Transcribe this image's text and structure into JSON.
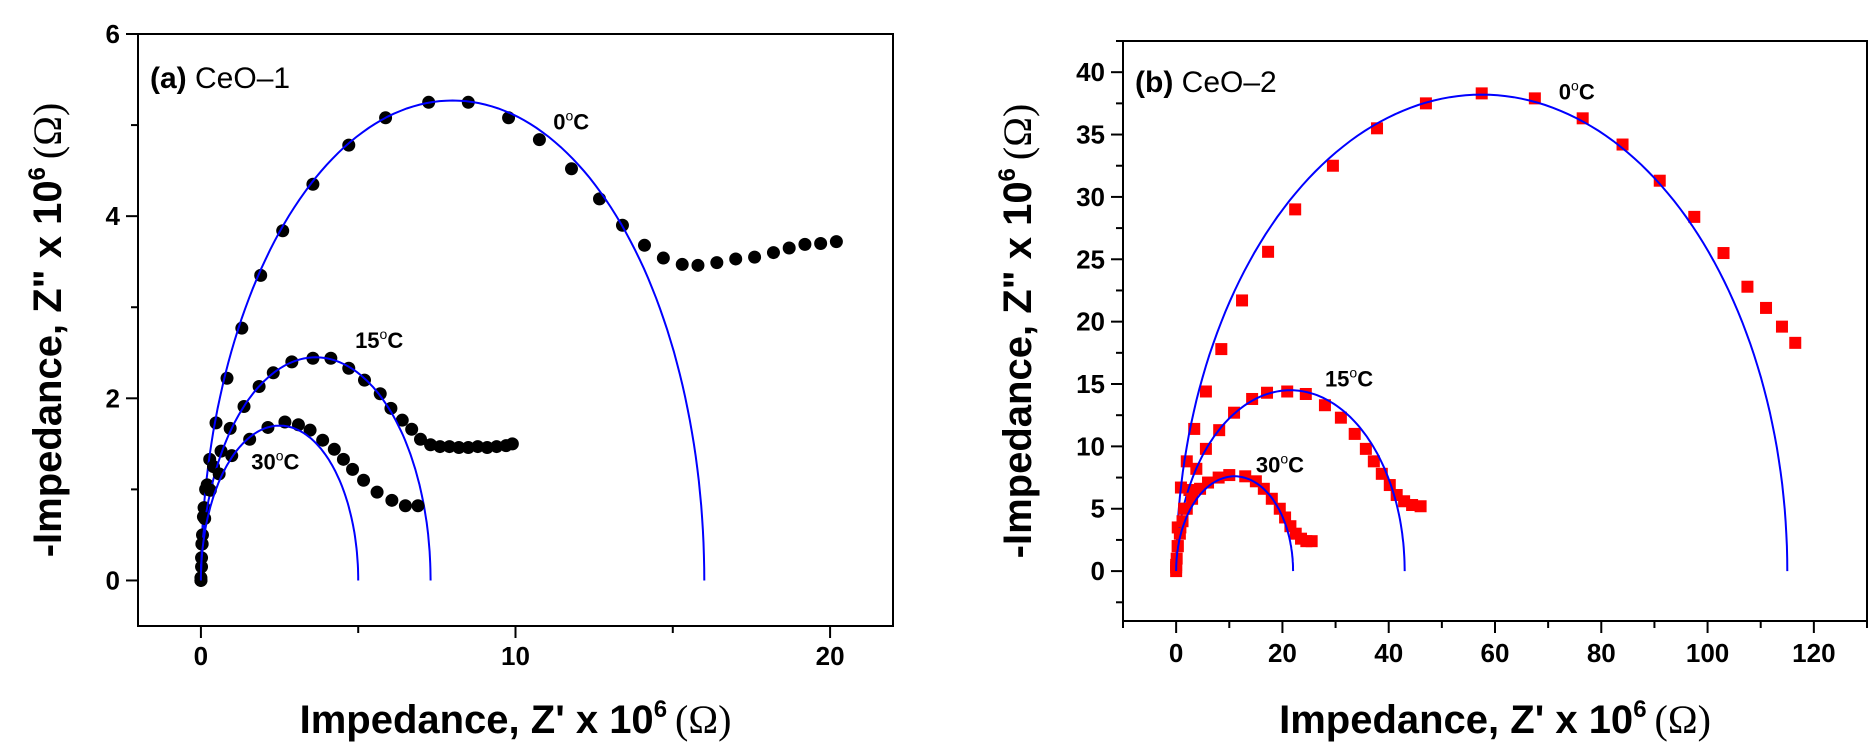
{
  "chart_data": [
    {
      "type": "scatter",
      "panel_label": "(a)",
      "title": "CeO–1",
      "xlabel": "Impedance, Z' x 10",
      "xlabel_sup": "6",
      "xlabel_unit": "(Ω)",
      "ylabel": "-Impedance, Z\" x 10",
      "ylabel_sup": "6",
      "ylabel_unit": "(Ω)",
      "xlim": [
        -2,
        22
      ],
      "ylim": [
        -0.5,
        6
      ],
      "xticks": [
        0,
        10,
        20
      ],
      "xminor": [
        5,
        15
      ],
      "yticks": [
        0,
        2,
        4,
        6
      ],
      "yminor": [
        1,
        3,
        5
      ],
      "grid": false,
      "marker": "circle",
      "marker_color": "#000000",
      "fit_color": "#0000ff",
      "series": [
        {
          "name": "0°C",
          "label": "0",
          "label_unit": "oC",
          "label_pos": [
            11.2,
            4.95
          ],
          "x": [
            0,
            0.02,
            0.04,
            0.08,
            0.15,
            0.28,
            0.48,
            0.83,
            1.3,
            1.9,
            2.6,
            3.56,
            4.7,
            5.87,
            7.24,
            8.5,
            9.78,
            10.76,
            11.78,
            12.67,
            13.4,
            14.1,
            14.7,
            15.3,
            15.8,
            16.4,
            17.0,
            17.6,
            18.2,
            18.7,
            19.2,
            19.7,
            20.2
          ],
          "y": [
            0,
            0.15,
            0.4,
            0.7,
            1.0,
            1.33,
            1.73,
            2.22,
            2.77,
            3.35,
            3.84,
            4.35,
            4.78,
            5.08,
            5.25,
            5.25,
            5.08,
            4.84,
            4.52,
            4.19,
            3.9,
            3.68,
            3.54,
            3.47,
            3.46,
            3.49,
            3.53,
            3.55,
            3.6,
            3.65,
            3.69,
            3.7,
            3.72
          ],
          "fit": {
            "x_start": 0,
            "x_end": 16.0,
            "peak": 5.27
          }
        },
        {
          "name": "15°C",
          "label": "15",
          "label_unit": "oC",
          "label_pos": [
            4.9,
            2.55
          ],
          "x": [
            0,
            0.02,
            0.05,
            0.1,
            0.2,
            0.4,
            0.64,
            0.93,
            1.37,
            1.85,
            2.3,
            2.89,
            3.56,
            4.13,
            4.7,
            5.2,
            5.7,
            6.04,
            6.4,
            6.7,
            6.98,
            7.3,
            7.6,
            7.9,
            8.2,
            8.5,
            8.8,
            9.1,
            9.4,
            9.7,
            9.9
          ],
          "y": [
            0,
            0.25,
            0.5,
            0.8,
            1.05,
            1.25,
            1.42,
            1.67,
            1.91,
            2.13,
            2.28,
            2.4,
            2.44,
            2.44,
            2.33,
            2.2,
            2.05,
            1.89,
            1.76,
            1.66,
            1.55,
            1.49,
            1.47,
            1.47,
            1.46,
            1.46,
            1.47,
            1.46,
            1.47,
            1.48,
            1.5
          ],
          "fit": {
            "x_start": 0,
            "x_end": 7.3,
            "peak": 2.45
          }
        },
        {
          "name": "30°C",
          "label": "30",
          "label_unit": "oC",
          "label_pos": [
            1.6,
            1.22
          ],
          "x": [
            0,
            0.03,
            0.12,
            0.3,
            0.58,
            0.98,
            1.55,
            2.13,
            2.67,
            3.1,
            3.47,
            3.87,
            4.24,
            4.53,
            4.82,
            5.17,
            5.6,
            6.07,
            6.5,
            6.9
          ],
          "y": [
            0.03,
            0.4,
            0.68,
            0.99,
            1.17,
            1.37,
            1.55,
            1.68,
            1.74,
            1.71,
            1.65,
            1.54,
            1.44,
            1.33,
            1.22,
            1.1,
            0.97,
            0.88,
            0.82,
            0.82
          ],
          "fit": {
            "x_start": 0,
            "x_end": 5.0,
            "peak": 1.7
          }
        }
      ]
    },
    {
      "type": "scatter",
      "panel_label": "(b)",
      "title": "CeO–2",
      "xlabel": "Impedance, Z' x 10",
      "xlabel_sup": "6",
      "xlabel_unit": "(Ω)",
      "ylabel": "-Impedance, Z\" x 10",
      "ylabel_sup": "6",
      "ylabel_unit": "(Ω)",
      "xlim": [
        -10,
        130
      ],
      "ylim": [
        -4,
        42.5
      ],
      "xticks": [
        0,
        20,
        40,
        60,
        80,
        100,
        120
      ],
      "xminor": [
        -10,
        10,
        30,
        50,
        70,
        90,
        110,
        130
      ],
      "yticks": [
        0,
        5,
        10,
        15,
        20,
        25,
        30,
        35,
        40
      ],
      "yminor": [
        -2.5,
        2.5,
        7.5,
        12.5,
        17.5,
        22.5,
        27.5,
        32.5,
        37.5,
        42.5
      ],
      "grid": false,
      "marker": "square",
      "marker_color": "#ff0000",
      "fit_color": "#0000ff",
      "series": [
        {
          "name": "0°C",
          "label": "0",
          "label_unit": "oC",
          "label_pos": [
            72,
            37.8
          ],
          "x": [
            0,
            0.3,
            0.9,
            2.0,
            3.4,
            5.6,
            8.5,
            12.4,
            17.3,
            22.4,
            29.5,
            37.8,
            47.0,
            57.5,
            67.5,
            76.5,
            84,
            91,
            97.5,
            103,
            107.5,
            111,
            114,
            116.5
          ],
          "y": [
            0,
            3.5,
            6.7,
            8.8,
            11.4,
            14.4,
            17.8,
            21.7,
            25.6,
            29.0,
            32.5,
            35.5,
            37.5,
            38.3,
            37.9,
            36.3,
            34.2,
            31.3,
            28.4,
            25.5,
            22.8,
            21.1,
            19.6,
            18.3
          ],
          "fit": {
            "x_start": 0,
            "x_end": 115,
            "peak": 38.2
          }
        },
        {
          "name": "15°C",
          "label": "15",
          "label_unit": "oC",
          "label_pos": [
            28,
            14.8
          ],
          "x": [
            0,
            0.3,
            0.8,
            1.5,
            2.5,
            3.8,
            5.6,
            8.1,
            10.9,
            14.3,
            17.1,
            20.9,
            24.4,
            28,
            31,
            33.6,
            35.7,
            37.2,
            38.7,
            40.2,
            41.5,
            42.9,
            44.4,
            46
          ],
          "y": [
            0.5,
            2,
            3.5,
            5,
            6.5,
            8.2,
            9.8,
            11.3,
            12.7,
            13.8,
            14.3,
            14.4,
            14.2,
            13.3,
            12.3,
            11,
            9.8,
            8.8,
            7.8,
            6.9,
            6.1,
            5.6,
            5.3,
            5.2
          ],
          "fit": {
            "x_start": 0,
            "x_end": 43,
            "peak": 14.5
          }
        },
        {
          "name": "30°C",
          "label": "30",
          "label_unit": "oC",
          "label_pos": [
            15,
            7.9
          ],
          "x": [
            0,
            0.1,
            0.3,
            0.7,
            1.2,
            2,
            3,
            4.5,
            6,
            8,
            10,
            13,
            15,
            16.5,
            18,
            19.5,
            20.5,
            21.5,
            22.5,
            23.5,
            24.5,
            25.5
          ],
          "y": [
            0.3,
            1,
            2,
            3,
            4,
            5,
            5.8,
            6.6,
            7.1,
            7.5,
            7.7,
            7.6,
            7.2,
            6.6,
            5.8,
            5,
            4.3,
            3.6,
            3,
            2.6,
            2.4,
            2.4
          ],
          "fit": {
            "x_start": 0,
            "x_end": 22,
            "peak": 7.6
          }
        }
      ]
    }
  ]
}
